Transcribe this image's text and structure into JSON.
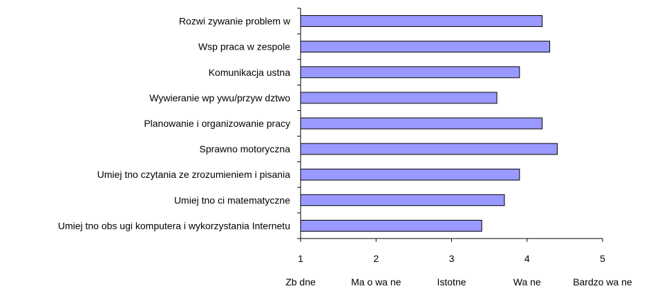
{
  "chart_data": {
    "type": "bar",
    "orientation": "horizontal",
    "categories": [
      "Rozwi zywanie problem w",
      "Wsp praca w zespole",
      "Komunikacja ustna",
      "Wywieranie wp ywu/przyw dztwo",
      "Planowanie i organizowanie pracy",
      "Sprawno motoryczna",
      "Umiej tno czytania ze zrozumieniem i pisania",
      "Umiej tno ci matematyczne",
      "Umiej tno obs ugi komputera i wykorzystania Internetu"
    ],
    "values": [
      4.2,
      4.3,
      3.9,
      3.6,
      4.2,
      4.4,
      3.9,
      3.7,
      3.4
    ],
    "xlim": [
      1,
      5
    ],
    "ticks": [
      "1",
      "2",
      "3",
      "4",
      "5"
    ],
    "scale_labels": [
      "Zb dne",
      "Ma o wa ne",
      "Istotne",
      "Wa ne",
      "Bardzo wa ne"
    ],
    "title": "",
    "xlabel": "",
    "ylabel": "",
    "grid": false,
    "legend": "none",
    "colors": {
      "bar_fill": "#9999ff",
      "bar_stroke": "#000000",
      "axis": "#000000",
      "text": "#000000"
    }
  }
}
